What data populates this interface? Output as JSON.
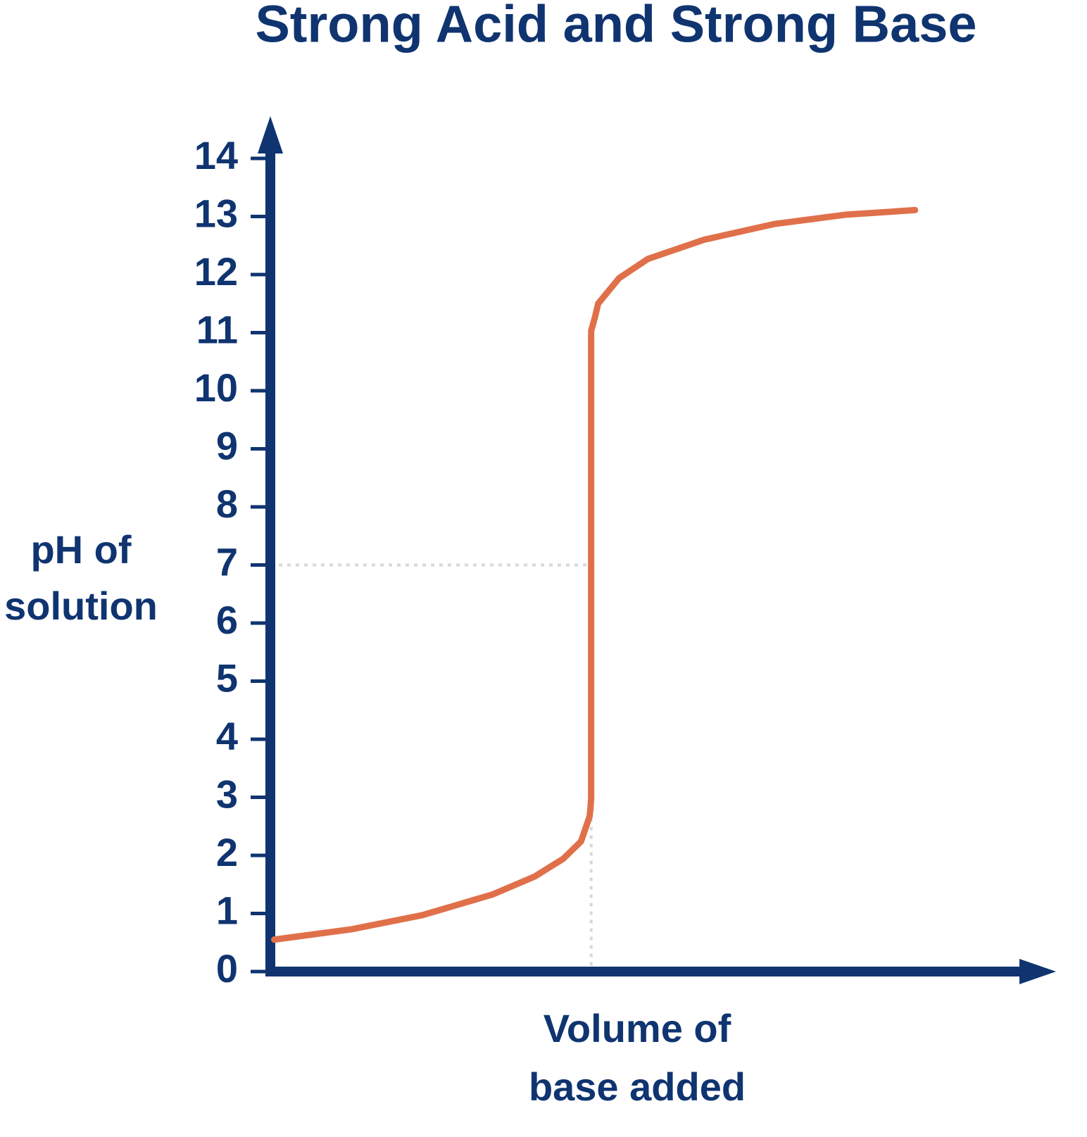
{
  "chart_data": {
    "type": "line",
    "title": "Strong Acid and Strong Base",
    "xlabel": [
      "Volume of",
      "base added"
    ],
    "ylabel": [
      "pH of",
      "solution"
    ],
    "x": [
      0.5,
      10.5,
      19.5,
      28.6,
      34,
      37.6,
      39.9,
      41.0,
      41.1,
      41.2,
      41.2,
      41.7,
      42.1,
      44.8,
      48.5,
      55.7,
      64.7,
      73.8,
      82.8
    ],
    "series": [
      {
        "color": "#e0704a",
        "values": [
          0.55,
          0.73,
          0.97,
          1.33,
          1.64,
          1.94,
          2.24,
          2.67,
          2.79,
          2.97,
          11.03,
          11.27,
          11.5,
          11.94,
          12.27,
          12.6,
          12.87,
          13.03,
          13.11
        ]
      }
    ],
    "xlim": [
      0,
      100
    ],
    "ylim": [
      0,
      14
    ],
    "yticks": [
      0,
      1,
      2,
      3,
      4,
      5,
      6,
      7,
      8,
      9,
      10,
      11,
      12,
      13,
      14
    ],
    "guide": {
      "x": 41.2,
      "y": 7
    },
    "grid": false
  }
}
